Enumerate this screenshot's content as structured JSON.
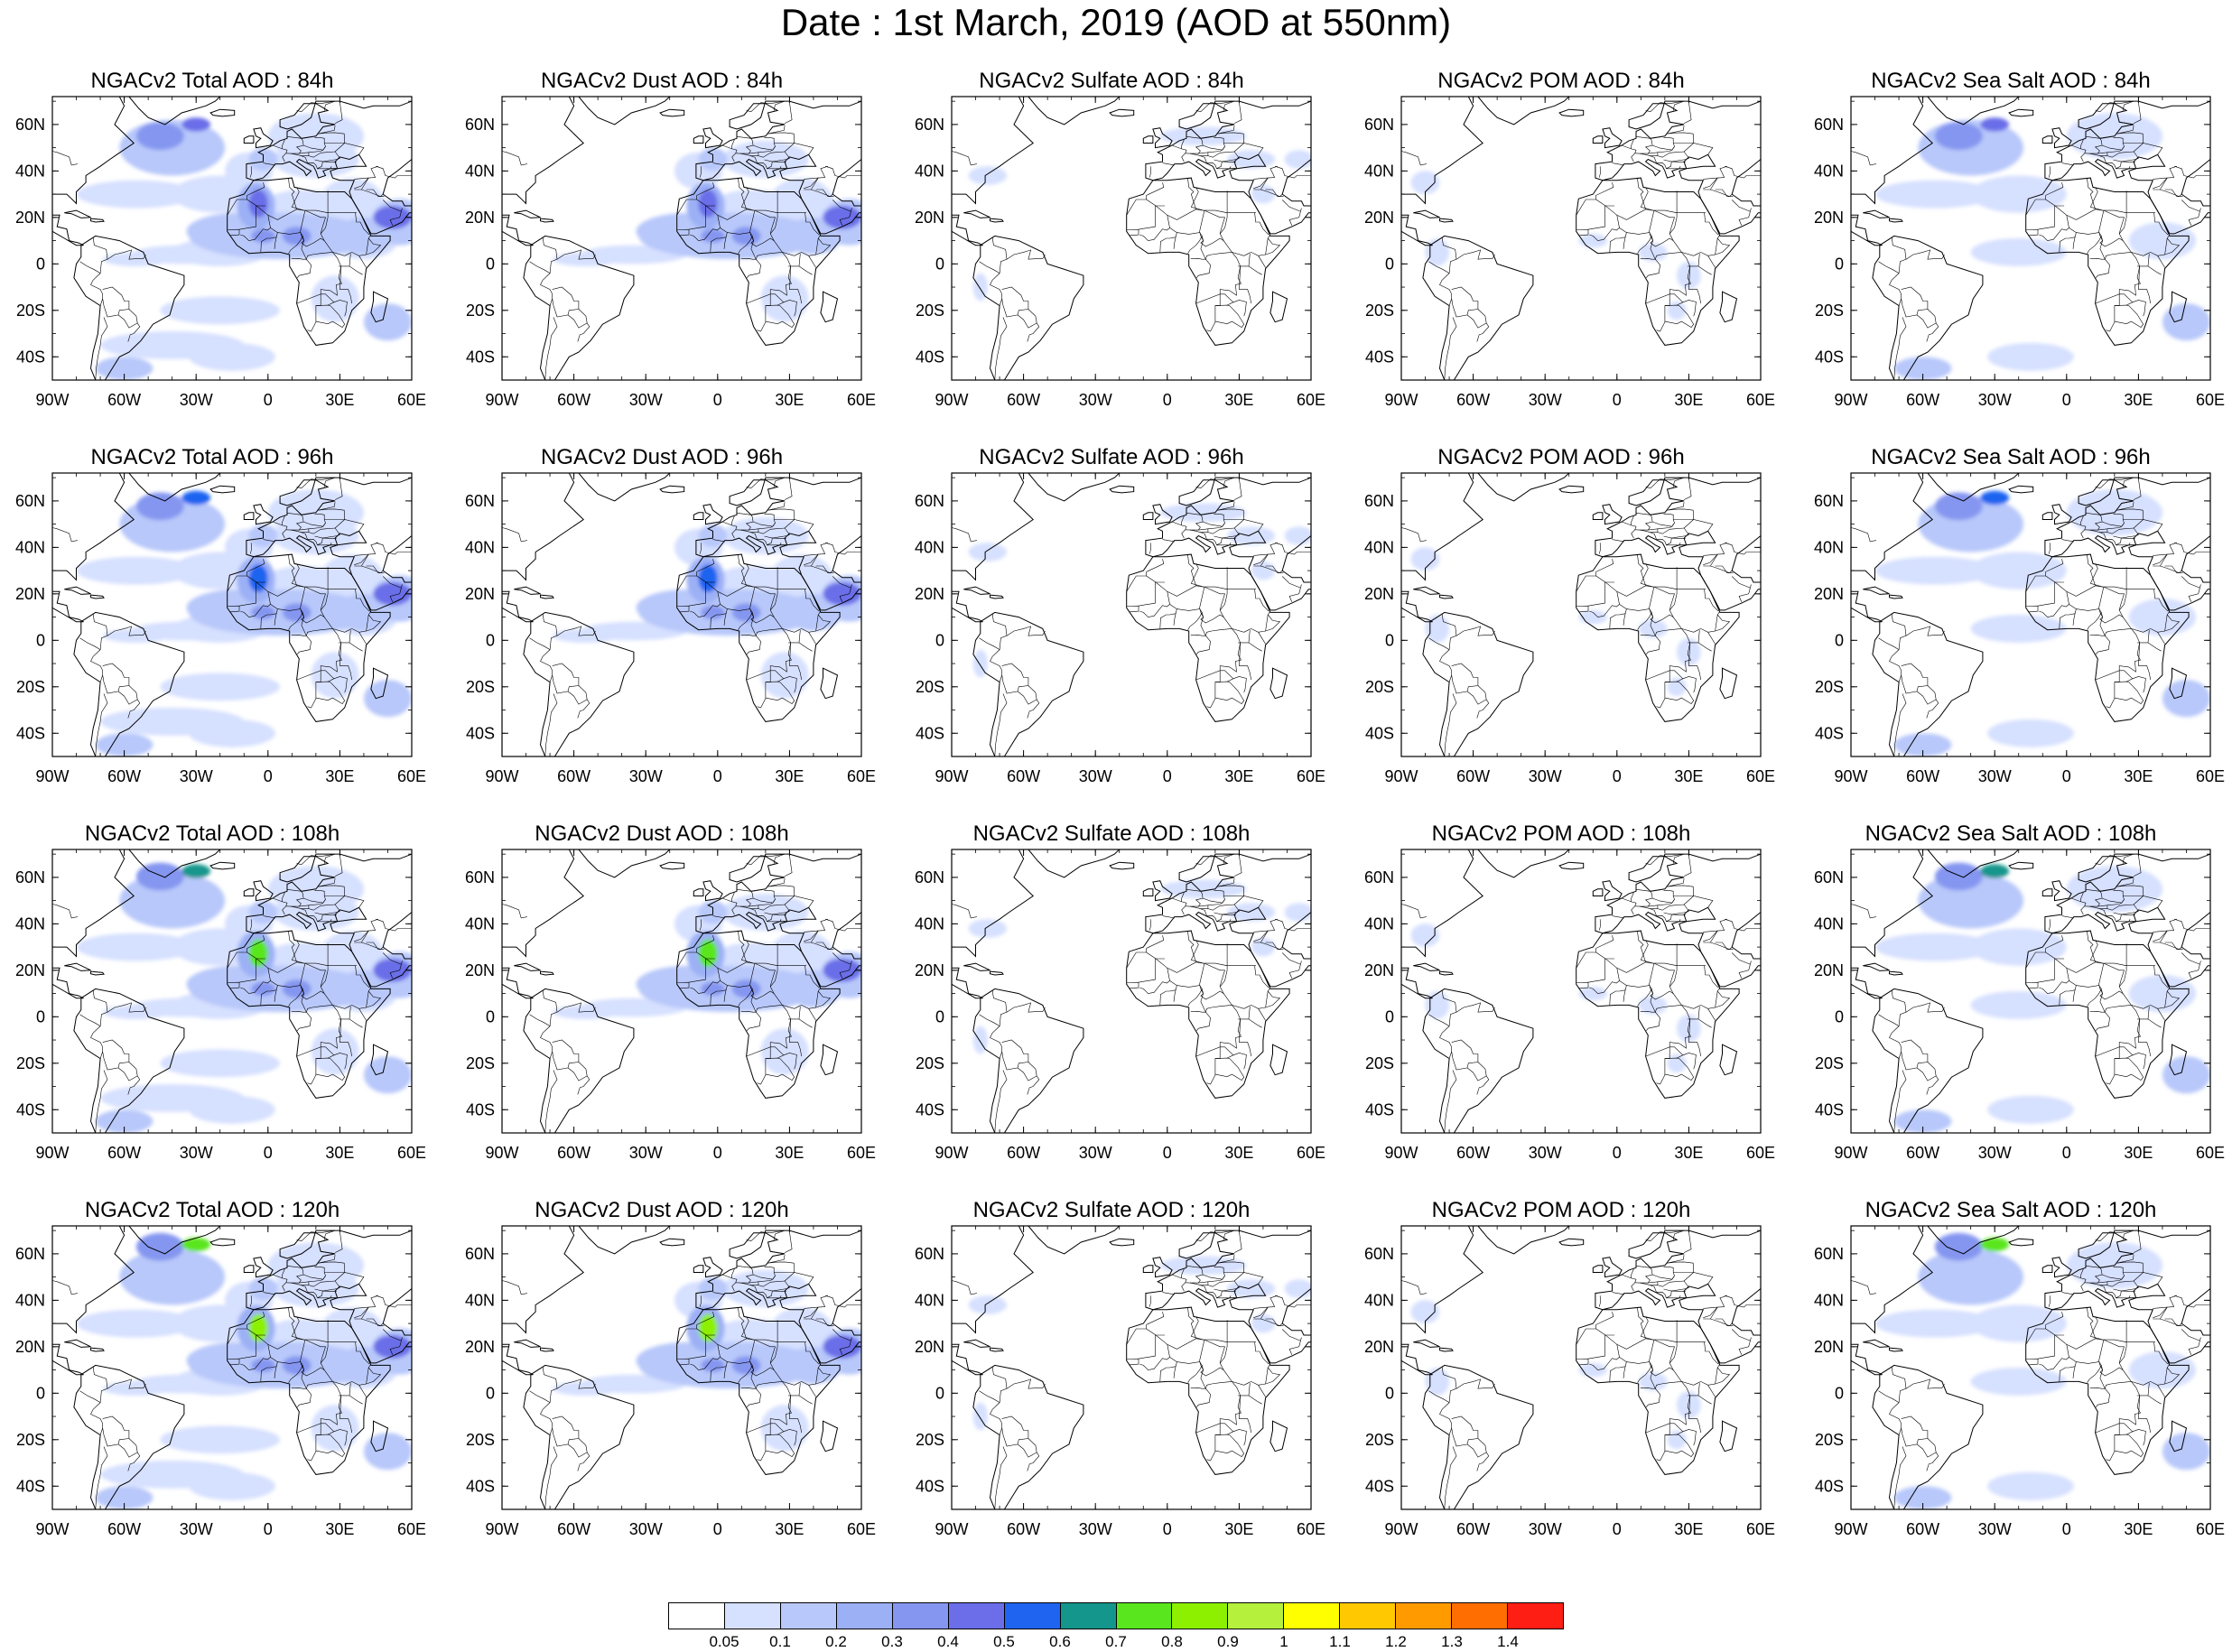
{
  "title": "Date : 1st March, 2019 (AOD at 550nm)",
  "map": {
    "lon_range": [
      -90,
      60
    ],
    "lat_range": [
      -50,
      72
    ],
    "lon_ticks": [
      "90W",
      "60W",
      "30W",
      "0",
      "30E",
      "60E"
    ],
    "lat_ticks": [
      "60N",
      "40N",
      "20N",
      "0",
      "20S",
      "40S"
    ]
  },
  "panels": [
    {
      "title": "NGACv2 Total AOD : 84h",
      "species": "total",
      "hour": 84
    },
    {
      "title": "NGACv2 Dust AOD : 84h",
      "species": "dust",
      "hour": 84
    },
    {
      "title": "NGACv2 Sulfate AOD : 84h",
      "species": "sulfate",
      "hour": 84
    },
    {
      "title": "NGACv2 POM AOD : 84h",
      "species": "pom",
      "hour": 84
    },
    {
      "title": "NGACv2 Sea Salt AOD : 84h",
      "species": "seasalt",
      "hour": 84
    },
    {
      "title": "NGACv2 Total AOD : 96h",
      "species": "total",
      "hour": 96
    },
    {
      "title": "NGACv2 Dust AOD : 96h",
      "species": "dust",
      "hour": 96
    },
    {
      "title": "NGACv2 Sulfate AOD : 96h",
      "species": "sulfate",
      "hour": 96
    },
    {
      "title": "NGACv2 POM AOD : 96h",
      "species": "pom",
      "hour": 96
    },
    {
      "title": "NGACv2 Sea Salt AOD : 96h",
      "species": "seasalt",
      "hour": 96
    },
    {
      "title": "NGACv2 Total AOD : 108h",
      "species": "total",
      "hour": 108
    },
    {
      "title": "NGACv2 Dust AOD : 108h",
      "species": "dust",
      "hour": 108
    },
    {
      "title": "NGACv2 Sulfate AOD : 108h",
      "species": "sulfate",
      "hour": 108
    },
    {
      "title": "NGACv2 POM AOD : 108h",
      "species": "pom",
      "hour": 108
    },
    {
      "title": "NGACv2 Sea Salt AOD : 108h",
      "species": "seasalt",
      "hour": 108
    },
    {
      "title": "NGACv2 Total AOD : 120h",
      "species": "total",
      "hour": 120
    },
    {
      "title": "NGACv2 Dust AOD : 120h",
      "species": "dust",
      "hour": 120
    },
    {
      "title": "NGACv2 Sulfate AOD : 120h",
      "species": "sulfate",
      "hour": 120
    },
    {
      "title": "NGACv2 POM AOD : 120h",
      "species": "pom",
      "hour": 120
    },
    {
      "title": "NGACv2 Sea Salt  AOD : 120h",
      "species": "seasalt",
      "hour": 120
    }
  ],
  "colorbar": {
    "labels": [
      "0.05",
      "0.1",
      "0.2",
      "0.3",
      "0.4",
      "0.5",
      "0.6",
      "0.7",
      "0.8",
      "0.9",
      "1",
      "1.1",
      "1.2",
      "1.3",
      "1.4"
    ],
    "colors": [
      "#ffffff",
      "#d6e0ff",
      "#b8c8fa",
      "#9cb0f5",
      "#8596f0",
      "#6b6ee8",
      "#1e64f0",
      "#14968c",
      "#5ae61e",
      "#8cf000",
      "#b4f03c",
      "#ffff00",
      "#ffc800",
      "#ff9b00",
      "#ff6e00",
      "#ff1e14"
    ]
  }
}
